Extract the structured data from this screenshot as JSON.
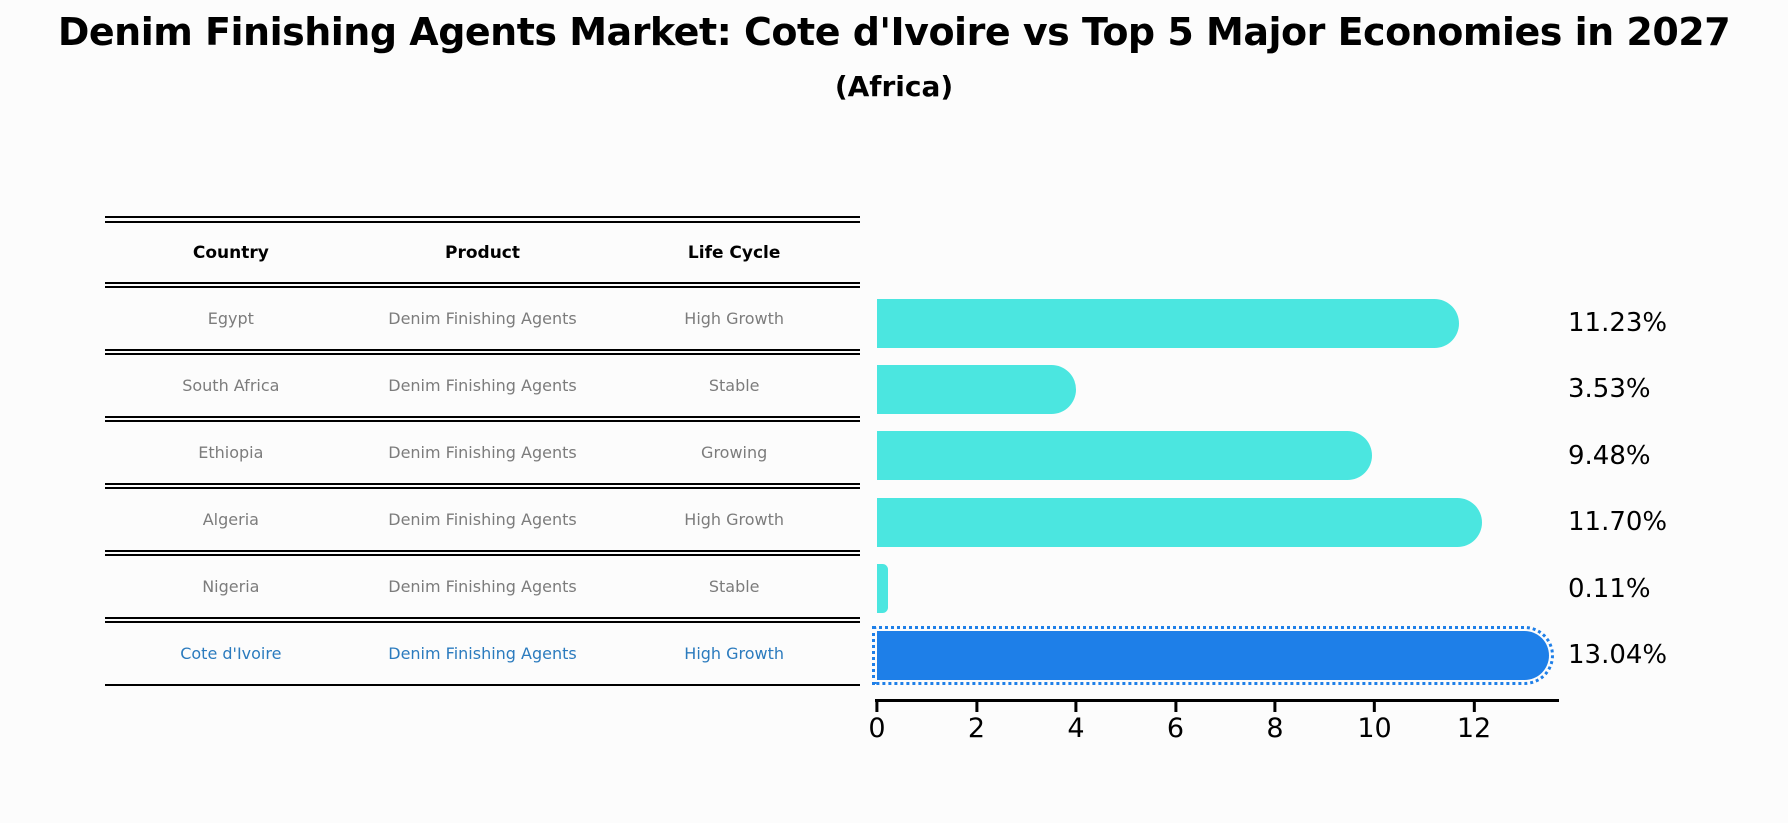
{
  "title": "Denim Finishing Agents Market: Cote d'Ivoire vs Top 5 Major Economies in 2027",
  "subtitle": "(Africa)",
  "table": {
    "headers": [
      "Country",
      "Product",
      "Life Cycle"
    ],
    "rows": [
      {
        "country": "Egypt",
        "product": "Denim Finishing Agents",
        "life_cycle": "High Growth",
        "highlighted": false
      },
      {
        "country": "South Africa",
        "product": "Denim Finishing Agents",
        "life_cycle": "Stable",
        "highlighted": false
      },
      {
        "country": "Ethiopia",
        "product": "Denim Finishing Agents",
        "life_cycle": "Growing",
        "highlighted": false
      },
      {
        "country": "Algeria",
        "product": "Denim Finishing Agents",
        "life_cycle": "High Growth",
        "highlighted": false
      },
      {
        "country": "Nigeria",
        "product": "Denim Finishing Agents",
        "life_cycle": "Stable",
        "highlighted": false
      },
      {
        "country": "Cote d'Ivoire",
        "product": "Denim Finishing Agents",
        "life_cycle": "High Growth",
        "highlighted": true
      }
    ]
  },
  "chart_data": {
    "type": "bar",
    "orientation": "horizontal",
    "title": "Denim Finishing Agents Market: Cote d'Ivoire vs Top 5 Major Economies in 2027",
    "subtitle": "(Africa)",
    "categories": [
      "Egypt",
      "South Africa",
      "Ethiopia",
      "Algeria",
      "Nigeria",
      "Cote d'Ivoire"
    ],
    "values": [
      11.23,
      3.53,
      9.48,
      11.7,
      0.11,
      13.04
    ],
    "pct_labels": [
      "11.23%",
      "3.53%",
      "9.48%",
      "11.70%",
      "0.11%",
      "13.04%"
    ],
    "unit": "%",
    "xlim": [
      0,
      13.7
    ],
    "xticks": [
      0,
      2,
      4,
      6,
      8,
      10,
      12
    ],
    "grid": false,
    "legend": "none",
    "highlight_index": 5
  },
  "colors": {
    "bar": "#4BE6E0",
    "highlight_bar": "#1E7FE8",
    "highlight_text": "#2B7BBE",
    "table_text": "#7C7C7C",
    "axis": "#000000",
    "background": "#fcfcfc"
  }
}
